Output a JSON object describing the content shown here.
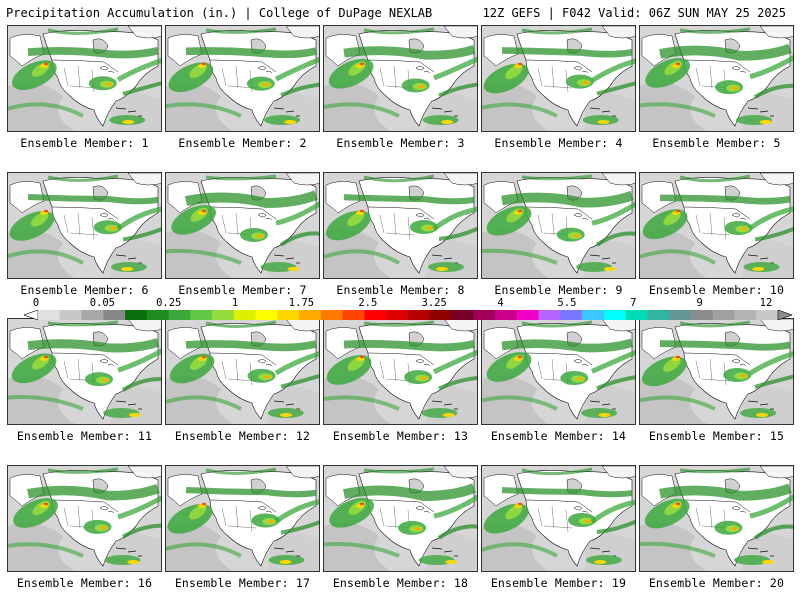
{
  "header": {
    "title": "Precipitation Accumulation (in.) | College of DuPage NEXLAB",
    "run_info": "12Z GEFS | F042 Valid: 06Z SUN MAY 25 2025"
  },
  "members": [
    {
      "label": "Ensemble Member: 1"
    },
    {
      "label": "Ensemble Member: 2"
    },
    {
      "label": "Ensemble Member: 3"
    },
    {
      "label": "Ensemble Member: 4"
    },
    {
      "label": "Ensemble Member: 5"
    },
    {
      "label": "Ensemble Member: 6"
    },
    {
      "label": "Ensemble Member: 7"
    },
    {
      "label": "Ensemble Member: 8"
    },
    {
      "label": "Ensemble Member: 9"
    },
    {
      "label": "Ensemble Member: 10"
    },
    {
      "label": "Ensemble Member: 11"
    },
    {
      "label": "Ensemble Member: 12"
    },
    {
      "label": "Ensemble Member: 13"
    },
    {
      "label": "Ensemble Member: 14"
    },
    {
      "label": "Ensemble Member: 15"
    },
    {
      "label": "Ensemble Member: 16"
    },
    {
      "label": "Ensemble Member: 17"
    },
    {
      "label": "Ensemble Member: 18"
    },
    {
      "label": "Ensemble Member: 19"
    },
    {
      "label": "Ensemble Member: 20"
    }
  ],
  "colorbar": {
    "tick_labels": [
      "0",
      "0.05",
      "0.25",
      "1",
      "1.75",
      "2.5",
      "3.25",
      "4",
      "5.5",
      "7",
      "9",
      "12"
    ],
    "colors": [
      "#e0e0e0",
      "#c8c8c8",
      "#a8a8a8",
      "#888888",
      "#0a6e0a",
      "#1e8c1e",
      "#3ca83c",
      "#64c846",
      "#96dc3c",
      "#dcf000",
      "#ffff00",
      "#ffd700",
      "#ffaa00",
      "#ff7800",
      "#ff4600",
      "#ff0000",
      "#dc0000",
      "#b40000",
      "#8c0000",
      "#780028",
      "#a0005a",
      "#c8008c",
      "#f000c8",
      "#b464ff",
      "#7878ff",
      "#3cc8ff",
      "#00ffff",
      "#00dcb4",
      "#32b4a0",
      "#649696",
      "#8c8c8c",
      "#a0a0a0",
      "#b4b4b4",
      "#c8c8c8"
    ]
  }
}
